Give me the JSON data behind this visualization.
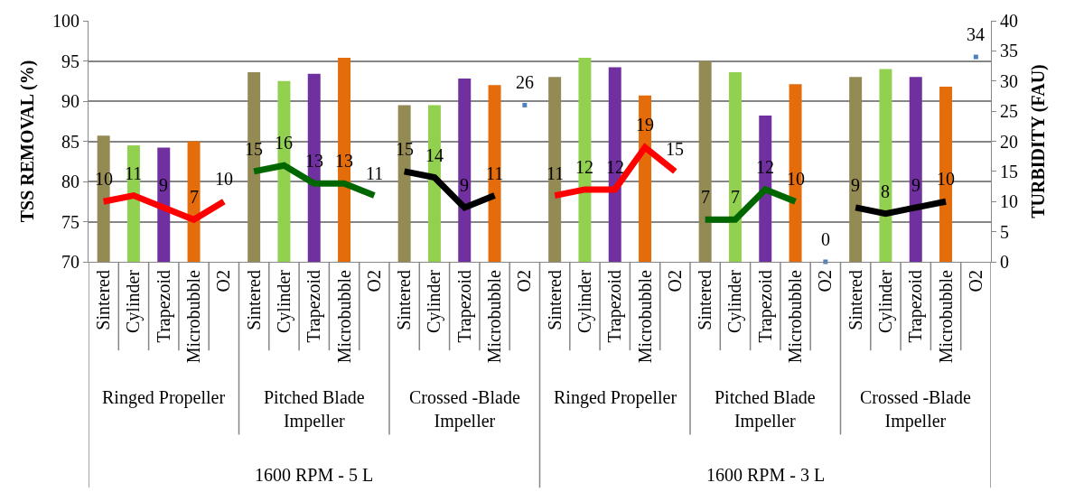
{
  "chart_data": {
    "type": "bar",
    "categories": [
      "Sintered",
      "Cylinder",
      "Trapezoid",
      "Microbubble",
      "O2",
      "Sintered",
      "Cylinder",
      "Trapezoid",
      "Microbubble",
      "O2",
      "Sintered",
      "Cylinder",
      "Trapezoid",
      "Microbubble",
      "O2",
      "Sintered",
      "Cylinder",
      "Trapezoid",
      "Microbubble",
      "O2",
      "Sintered",
      "Cylinder",
      "Trapezoid",
      "Microbubble",
      "O2",
      "Sintered",
      "Cylinder",
      "Trapezoid",
      "Microbubble",
      "O2"
    ],
    "ylabel": "TSS REMOVAL (%)",
    "y2label": "TURBIDITY (FAU)",
    "ylim": [
      70,
      100
    ],
    "yticks": [
      70,
      75,
      80,
      85,
      90,
      95,
      100
    ],
    "y2lim": [
      0,
      40
    ],
    "y2ticks": [
      0,
      5,
      10,
      15,
      20,
      25,
      30,
      35,
      40
    ],
    "grid": "y",
    "annotations": [
      "Ringed Propeller",
      "Pitched Blade Impeller",
      "Crossed -Blade Impeller",
      "Ringed Propeller",
      "Pitched Blade Impeller",
      "Crossed -Blade Impeller",
      "1600 RPM - 5 L",
      "1600 RPM - 3 L"
    ],
    "series": [
      {
        "values": [
          85.7,
          84.5,
          84.2,
          85.0,
          null,
          93.6,
          92.5,
          93.4,
          95.4,
          null,
          89.5,
          89.5,
          92.8,
          92.0,
          null,
          93.0,
          95.4,
          94.2,
          90.7,
          null,
          95.0,
          93.6,
          88.2,
          92.1,
          null,
          93.0,
          94.0,
          93.0,
          91.8,
          null
        ],
        "colors": [
          "#948a54",
          "#92d050",
          "#7030a0",
          "#e46c0a",
          "#4f81bd",
          "#948a54",
          "#92d050",
          "#7030a0",
          "#e46c0a",
          "#4f81bd",
          "#948a54",
          "#92d050",
          "#7030a0",
          "#e46c0a",
          "#4f81bd",
          "#948a54",
          "#92d050",
          "#7030a0",
          "#e46c0a",
          "#4f81bd",
          "#948a54",
          "#92d050",
          "#7030a0",
          "#e46c0a",
          "#4f81bd",
          "#948a54",
          "#92d050",
          "#7030a0",
          "#e46c0a",
          "#4f81bd"
        ]
      },
      {
        "type": "line",
        "axis": "y2",
        "color": "#ff0000",
        "data_labels": true,
        "values": [
          10,
          11,
          9,
          7,
          10,
          null,
          null,
          null,
          null,
          null,
          null,
          null,
          null,
          null,
          null,
          null,
          null,
          null,
          null,
          null,
          null,
          null,
          null,
          null,
          null,
          null,
          null,
          null,
          null,
          null
        ]
      },
      {
        "type": "line",
        "axis": "y2",
        "color": "#006600",
        "data_labels": true,
        "values": [
          null,
          null,
          null,
          null,
          null,
          15,
          16,
          13,
          13,
          11,
          null,
          null,
          null,
          null,
          null,
          null,
          null,
          null,
          null,
          null,
          null,
          null,
          null,
          null,
          null,
          null,
          null,
          null,
          null,
          null
        ]
      },
      {
        "type": "line",
        "axis": "y2",
        "color": "#000000",
        "data_labels": true,
        "values": [
          null,
          null,
          null,
          null,
          null,
          null,
          null,
          null,
          null,
          null,
          15,
          14,
          9,
          11,
          null,
          null,
          null,
          null,
          null,
          null,
          null,
          null,
          null,
          null,
          null,
          null,
          null,
          null,
          null,
          null
        ]
      },
      {
        "type": "line",
        "axis": "y2",
        "color": "#ff0000",
        "data_labels": true,
        "values": [
          null,
          null,
          null,
          null,
          null,
          null,
          null,
          null,
          null,
          null,
          null,
          null,
          null,
          null,
          null,
          11,
          12,
          12,
          19,
          15,
          null,
          null,
          null,
          null,
          null,
          null,
          null,
          null,
          null,
          null
        ]
      },
      {
        "type": "line",
        "axis": "y2",
        "color": "#006600",
        "data_labels": true,
        "values": [
          null,
          null,
          null,
          null,
          null,
          null,
          null,
          null,
          null,
          null,
          null,
          null,
          null,
          null,
          null,
          null,
          null,
          null,
          null,
          null,
          7,
          7,
          12,
          10,
          null,
          null,
          null,
          null,
          null,
          null
        ]
      },
      {
        "type": "line",
        "axis": "y2",
        "color": "#000000",
        "data_labels": true,
        "values": [
          null,
          null,
          null,
          null,
          null,
          null,
          null,
          null,
          null,
          null,
          null,
          null,
          null,
          null,
          null,
          null,
          null,
          null,
          null,
          null,
          null,
          null,
          null,
          null,
          null,
          9,
          8,
          9,
          10,
          null
        ]
      },
      {
        "type": "scatter",
        "axis": "y2",
        "marker": "square",
        "color": "#4f81bd",
        "data_labels": true,
        "values": [
          null,
          null,
          null,
          null,
          null,
          null,
          null,
          null,
          null,
          null,
          null,
          null,
          null,
          null,
          26,
          null,
          null,
          null,
          null,
          null,
          null,
          null,
          null,
          null,
          0,
          null,
          null,
          null,
          null,
          34
        ]
      }
    ]
  }
}
